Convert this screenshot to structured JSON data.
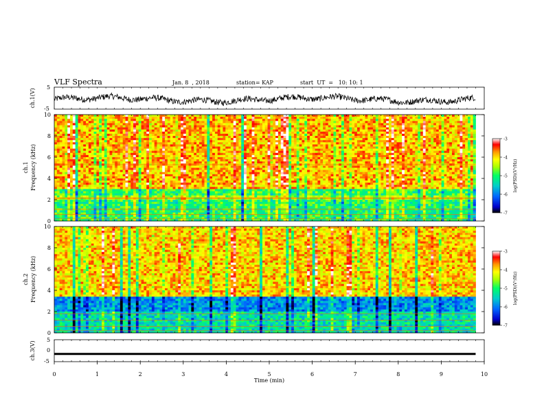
{
  "header": {
    "title": "VLF Spectra",
    "date": "Jan. 8  , 2018",
    "station": "station= KAP",
    "start": "start  UT  =   10: 10: 1"
  },
  "chart_data": [
    {
      "id": "ch1-waveform",
      "type": "line",
      "ylabel": "ch.1(V)",
      "ylim": [
        -5,
        5
      ],
      "ytick_labels": [
        "5",
        "-5"
      ],
      "xlim": [
        0,
        10
      ],
      "trace_range_min": [
        9.8
      ],
      "note": "noisy black waveform, amplitude approx -3 to 2 V"
    },
    {
      "id": "ch1-spectrogram",
      "type": "heatmap",
      "ylabel": "ch.1\nFrequency  (kHz)",
      "ylim": [
        0,
        10
      ],
      "ytick_labels": [
        "0",
        "2",
        "4",
        "6",
        "8",
        "10"
      ],
      "xlim": [
        0,
        10
      ],
      "data_range_min": [
        0,
        9.8
      ],
      "colorbar": {
        "label": "log(PSD)(V²/Hz)",
        "range": [
          -7,
          -3
        ],
        "tick_labels": [
          "-3",
          "-4",
          "-5",
          "-6",
          "-7"
        ]
      }
    },
    {
      "id": "ch2-spectrogram",
      "type": "heatmap",
      "ylabel": "ch.2\nFrequency  (kHz)",
      "ylim": [
        0,
        10
      ],
      "ytick_labels": [
        "0",
        "2",
        "4",
        "6",
        "8",
        "10"
      ],
      "xlim": [
        0,
        10
      ],
      "data_range_min": [
        0,
        9.8
      ],
      "colorbar": {
        "label": "log(PSD)(V²/Hz)",
        "range": [
          -7,
          -3
        ],
        "tick_labels": [
          "-3",
          "-4",
          "-5",
          "-6",
          "-7"
        ]
      }
    },
    {
      "id": "ch3-waveform",
      "type": "line",
      "ylabel": "ch.3(V)",
      "ylim": [
        -5,
        5
      ],
      "ytick_labels": [
        "5",
        "0",
        "-5"
      ],
      "xlim": [
        0,
        10
      ],
      "constant_value": [
        -1.5
      ],
      "xlabel": "Time  (min)",
      "xtick_labels": [
        "0",
        "1",
        "2",
        "3",
        "4",
        "5",
        "6",
        "7",
        "8",
        "9",
        "10"
      ]
    }
  ],
  "colors": {
    "axis": "#000000",
    "trace": "#000000",
    "colormap": [
      "#000000",
      "#0000cc",
      "#0066ff",
      "#00cccc",
      "#00ff66",
      "#aaff00",
      "#ffff00",
      "#ff9900",
      "#ff0000",
      "#ffffff"
    ]
  }
}
